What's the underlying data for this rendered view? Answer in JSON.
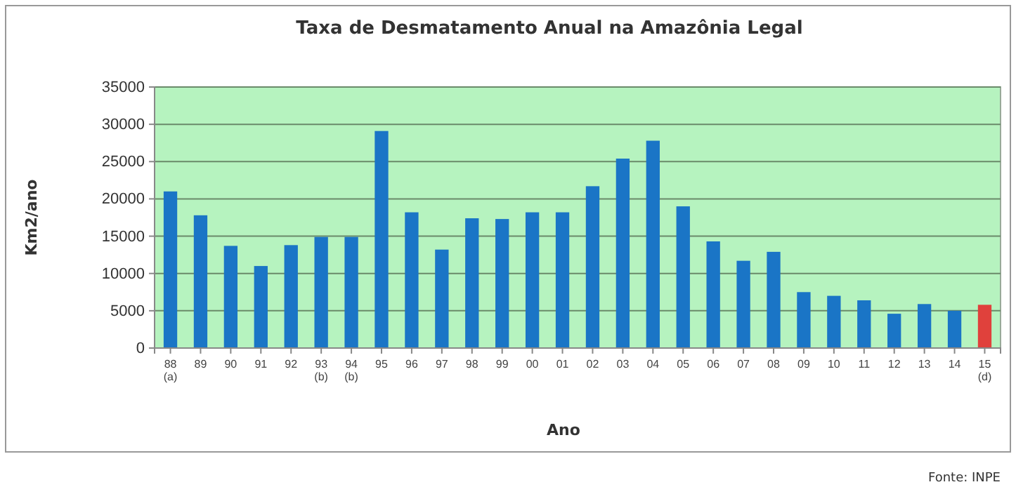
{
  "chart_data": {
    "type": "bar",
    "title": "Taxa de Desmatamento Anual na Amazônia Legal",
    "xlabel": "Ano",
    "ylabel": "Km2/ano",
    "categories": [
      "88\n(a)",
      "89",
      "90",
      "91",
      "92",
      "93\n(b)",
      "94\n(b)",
      "95",
      "96",
      "97",
      "98",
      "99",
      "00",
      "01",
      "02",
      "03",
      "04",
      "05",
      "06",
      "07",
      "08",
      "09",
      "10",
      "11",
      "12",
      "13",
      "14",
      "15\n(d)"
    ],
    "values": [
      21000,
      17800,
      13700,
      11000,
      13800,
      14900,
      14900,
      29100,
      18200,
      13200,
      17400,
      17300,
      18200,
      18200,
      21700,
      25400,
      27800,
      19000,
      14300,
      11700,
      12900,
      7500,
      7000,
      6400,
      4600,
      5900,
      5000,
      5800
    ],
    "colors": [
      "#1a75c6",
      "#1a75c6",
      "#1a75c6",
      "#1a75c6",
      "#1a75c6",
      "#1a75c6",
      "#1a75c6",
      "#1a75c6",
      "#1a75c6",
      "#1a75c6",
      "#1a75c6",
      "#1a75c6",
      "#1a75c6",
      "#1a75c6",
      "#1a75c6",
      "#1a75c6",
      "#1a75c6",
      "#1a75c6",
      "#1a75c6",
      "#1a75c6",
      "#1a75c6",
      "#1a75c6",
      "#1a75c6",
      "#1a75c6",
      "#1a75c6",
      "#1a75c6",
      "#1a75c6",
      "#e0413c"
    ],
    "ylim": [
      0,
      35000
    ],
    "yticks": [
      0,
      5000,
      10000,
      15000,
      20000,
      25000,
      30000,
      35000
    ],
    "grid": "y",
    "annotations": [
      "Fonte: INPE"
    ]
  }
}
